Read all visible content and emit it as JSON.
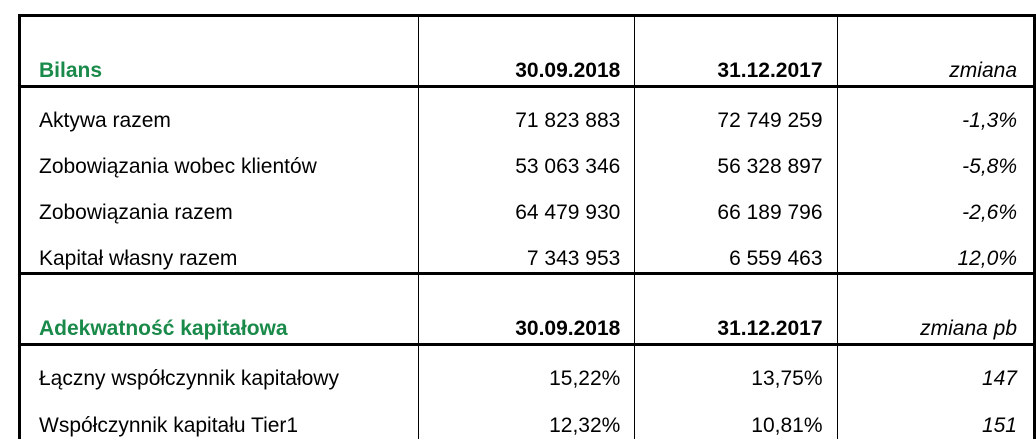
{
  "sections": [
    {
      "title": "Bilans",
      "col1": "30.09.2018",
      "col2": "31.12.2017",
      "change_label": "zmiana",
      "rows": [
        {
          "label": "Aktywa razem",
          "v1": "71 823 883",
          "v2": "72 749 259",
          "change": "-1,3%"
        },
        {
          "label": "Zobowiązania wobec klientów",
          "v1": "53 063 346",
          "v2": "56 328 897",
          "change": "-5,8%"
        },
        {
          "label": "Zobowiązania razem",
          "v1": "64 479 930",
          "v2": "66 189 796",
          "change": "-2,6%"
        },
        {
          "label": "Kapitał własny razem",
          "v1": "7 343 953",
          "v2": "6 559 463",
          "change": "12,0%"
        }
      ]
    },
    {
      "title": "Adekwatność kapitałowa",
      "col1": "30.09.2018",
      "col2": "31.12.2017",
      "change_label": "zmiana pb",
      "rows": [
        {
          "label": "Łączny współczynnik kapitałowy",
          "v1": "15,22%",
          "v2": "13,75%",
          "change": "147"
        },
        {
          "label": "Współczynnik kapitału Tier1",
          "v1": "12,32%",
          "v2": "10,81%",
          "change": "151"
        }
      ]
    }
  ],
  "colors": {
    "section_title": "#1a8a4a",
    "border": "#000000"
  }
}
